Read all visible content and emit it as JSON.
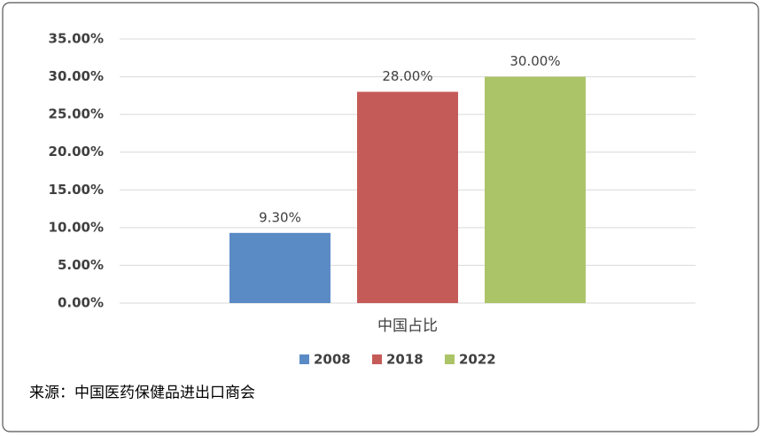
{
  "chart_data": {
    "type": "bar",
    "categories": [
      "中国占比"
    ],
    "series": [
      {
        "name": "2008",
        "color": "#5b8bc5",
        "values": [
          9.3
        ],
        "value_labels": [
          "9.30%"
        ]
      },
      {
        "name": "2018",
        "color": "#c55b58",
        "values": [
          28
        ],
        "value_labels": [
          "28.00%"
        ]
      },
      {
        "name": "2022",
        "color": "#acc468",
        "values": [
          30
        ],
        "value_labels": [
          "30.00%"
        ]
      }
    ],
    "ylim": [
      0,
      35
    ],
    "yticks": [
      {
        "value": 0,
        "label": "0.00%"
      },
      {
        "value": 5,
        "label": "5.00%"
      },
      {
        "value": 10,
        "label": "10.00%"
      },
      {
        "value": 15,
        "label": "15.00%"
      },
      {
        "value": 20,
        "label": "20.00%"
      },
      {
        "value": 25,
        "label": "25.00%"
      },
      {
        "value": 30,
        "label": "30.00%"
      },
      {
        "value": 35,
        "label": "35.00%"
      }
    ],
    "grid": true,
    "legend": "bottom",
    "source": "来源：中国医药保健品进出口商会"
  }
}
